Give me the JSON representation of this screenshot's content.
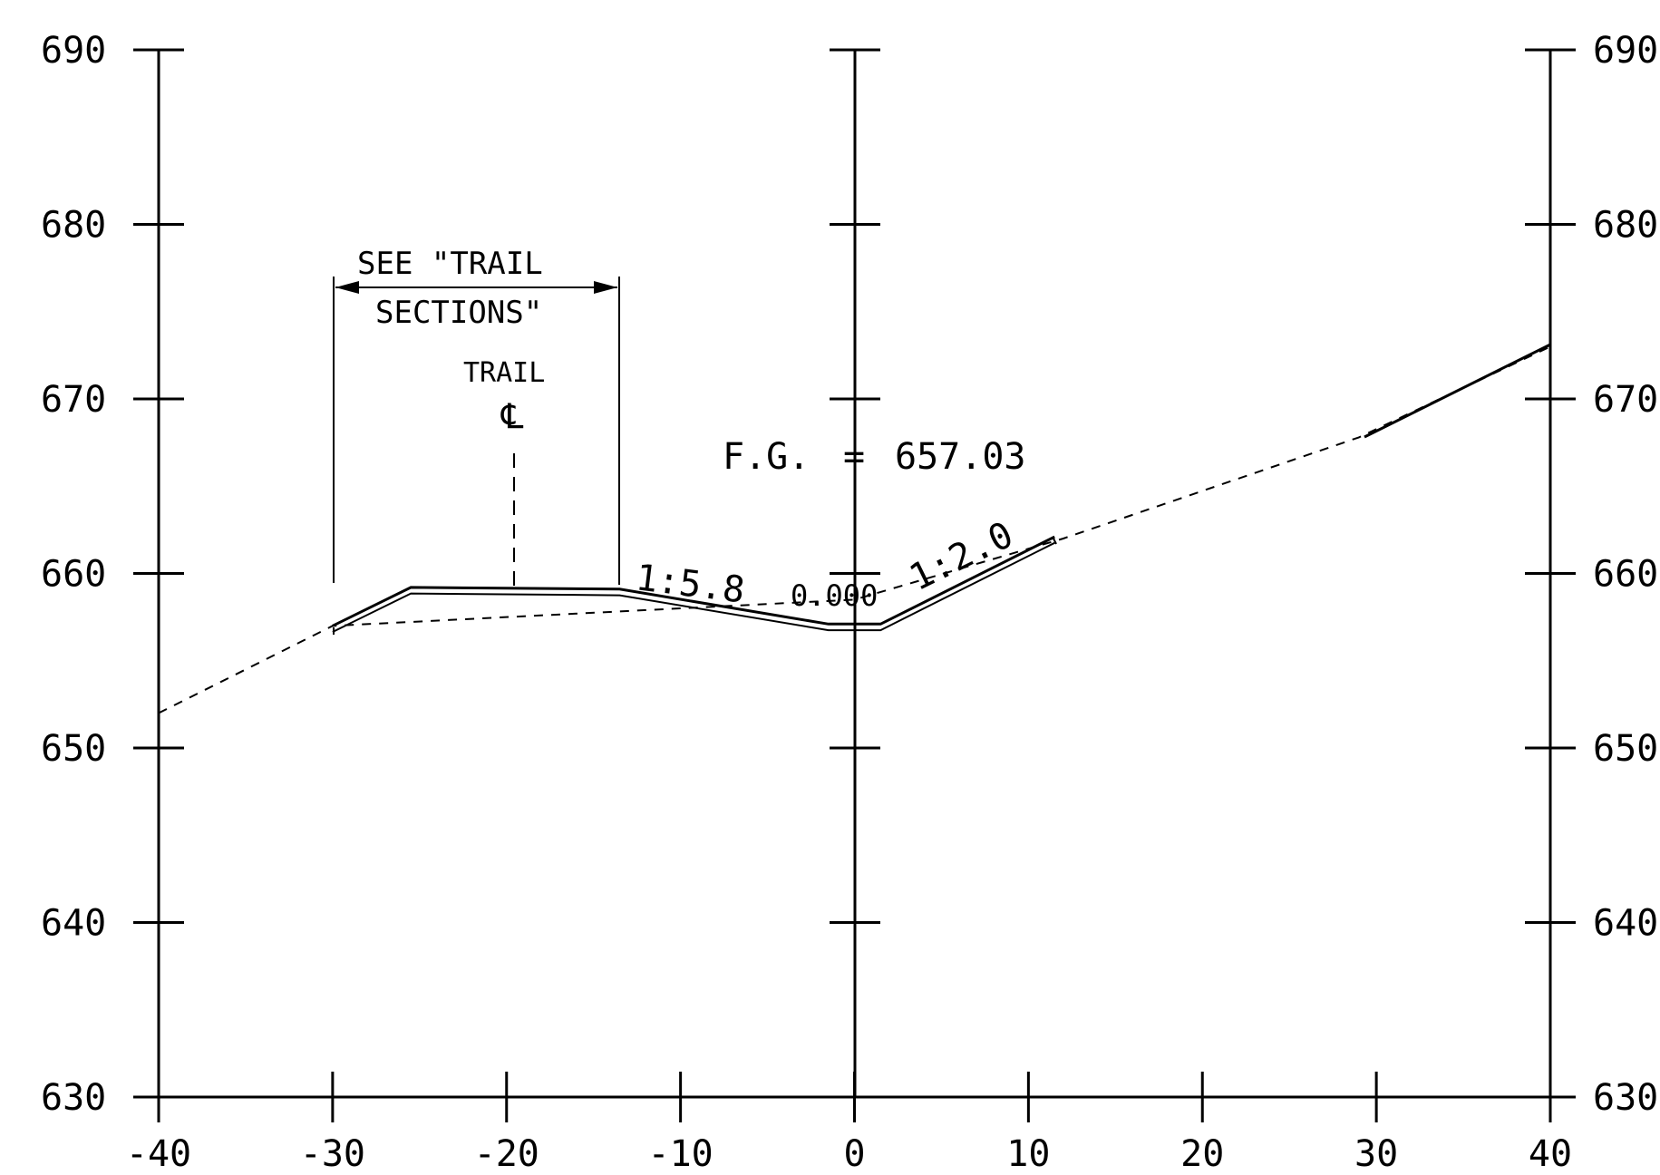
{
  "drawing": {
    "x_ticks": [
      "-40",
      "-30",
      "-20",
      "-10",
      "0",
      "10",
      "20",
      "30",
      "40"
    ],
    "y_ticks_left": [
      "690",
      "680",
      "670",
      "660",
      "650",
      "640",
      "630"
    ],
    "y_ticks_right": [
      "690",
      "680",
      "670",
      "660",
      "650",
      "640",
      "630"
    ],
    "note_see_line1": "SEE \"TRAIL",
    "note_see_line2": "SECTIONS\"",
    "trail_label": "TRAIL",
    "centerline_symbol": "℄",
    "fg_label": "F.G.",
    "fg_equals": "=",
    "fg_value": "657.03",
    "slope_left": "1:5.8",
    "slope_zero": "0.000",
    "slope_right": "1:2.0"
  },
  "chart_data": {
    "type": "cross-section",
    "x_range": [
      -40,
      40
    ],
    "y_range": [
      630,
      690
    ],
    "existing_ground": [
      [
        -40,
        652
      ],
      [
        -30,
        657
      ],
      [
        0,
        658.5
      ],
      [
        12,
        662
      ],
      [
        29,
        667.8
      ],
      [
        40,
        673
      ]
    ],
    "finished_grade": [
      [
        -30,
        657
      ],
      [
        -25.5,
        659.2
      ],
      [
        -13.5,
        659.1
      ],
      [
        -1.5,
        657.1
      ],
      [
        1.5,
        657.1
      ],
      [
        11.5,
        662.1
      ]
    ],
    "finished_grade_elevation": 657.03,
    "slopes": [
      "1:5.8",
      "0.000",
      "1:2.0"
    ]
  }
}
